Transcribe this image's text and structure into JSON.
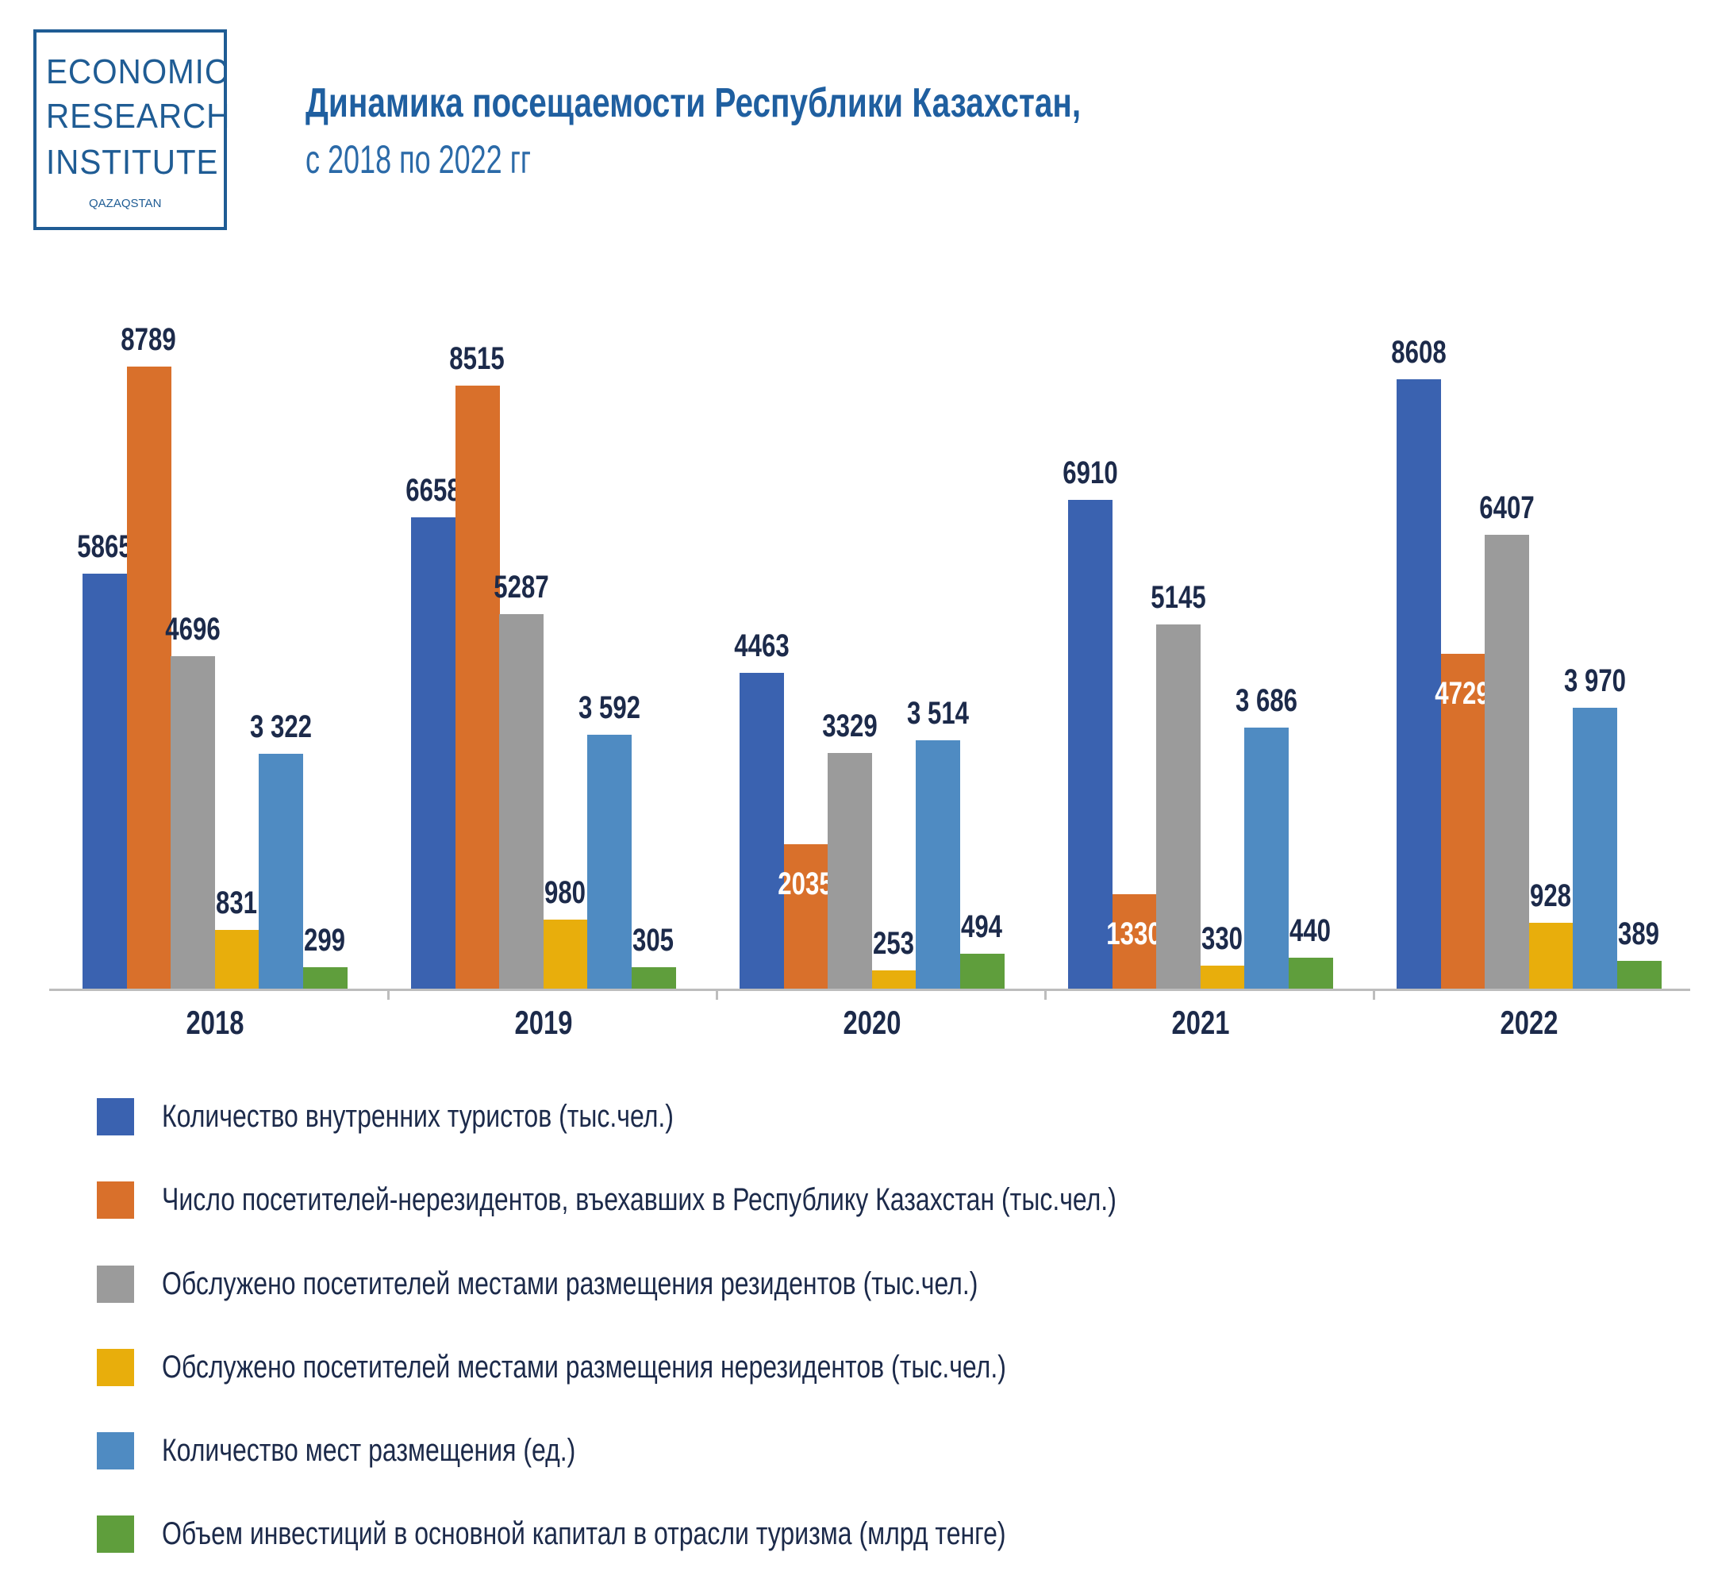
{
  "logo": {
    "lines": [
      "ECONOMIC",
      "RESEARCH",
      "INSTITUTE"
    ],
    "small": "QAZAQSTAN"
  },
  "header": {
    "title": "Динамика посещаемости Республики Казахстан,",
    "subtitle": "с 2018 по 2022 гг"
  },
  "chart_data": {
    "type": "bar",
    "title": "Динамика посещаемости Республики Казахстан,",
    "subtitle": "с 2018 по 2022 гг",
    "categories": [
      "2018",
      "2019",
      "2020",
      "2021",
      "2022"
    ],
    "legend_position": "bottom",
    "grid": false,
    "series": [
      {
        "name": "Количество внутренних туристов (тыс.чел.)",
        "color": "#3a62b0",
        "values": [
          5865,
          6658,
          4463,
          6910,
          8608
        ],
        "labels": [
          "5865",
          "6658",
          "4463",
          "6910",
          "8608"
        ]
      },
      {
        "name": "Число посетителей-нерезидентов, въехавших в Республику Казахстан (тыс.чел.)",
        "color": "#d9702b",
        "values": [
          8789,
          8515,
          2035,
          1330,
          4729
        ],
        "labels": [
          "8789",
          "8515",
          "2035",
          "1330",
          "4729"
        ]
      },
      {
        "name": "Обслужено посетителей местами размещения резидентов (тыс.чел.)",
        "color": "#9b9b9b",
        "values": [
          4696,
          5287,
          3329,
          5145,
          6407
        ],
        "labels": [
          "4696",
          "5287",
          "3329",
          "5145",
          "6407"
        ]
      },
      {
        "name": "Обслужено посетителей местами размещения нерезидентов (тыс.чел.)",
        "color": "#e8ae0c",
        "values": [
          831,
          980,
          253,
          330,
          928
        ],
        "labels": [
          "831",
          "980",
          "253",
          "330",
          "928"
        ]
      },
      {
        "name": "Количество мест размещения (ед.)",
        "color": "#4f8bc2",
        "values": [
          3322,
          3592,
          3514,
          3686,
          3970
        ],
        "labels": [
          "3 322",
          "3 592",
          "3 514",
          "3 686",
          "3 970"
        ]
      },
      {
        "name": "Объем инвестиций в основной капитал в отрасли туризма (млрд тенге)",
        "color": "#5f9e3c",
        "values": [
          299,
          305,
          494,
          440,
          389
        ],
        "labels": [
          "299",
          "305",
          "494",
          "440",
          "389"
        ]
      }
    ]
  }
}
